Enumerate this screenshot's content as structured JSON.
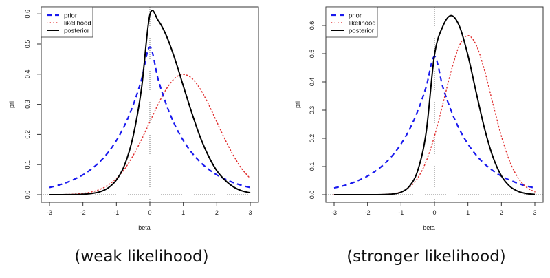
{
  "chart_data": [
    {
      "type": "line",
      "caption": "(weak likelihood)",
      "xlabel": "beta",
      "ylabel": "pri",
      "xlim": [
        -3,
        3
      ],
      "ylim": [
        0,
        0.6
      ],
      "xticks": [
        "-3",
        "-2",
        "-1",
        "0",
        "1",
        "2",
        "3"
      ],
      "yticks": [
        "0.0",
        "0.1",
        "0.2",
        "0.3",
        "0.4",
        "0.5",
        "0.6"
      ],
      "legend": {
        "position": "top-left",
        "entries": [
          "prior",
          "likelihood",
          "posterior"
        ]
      },
      "reference_lines": {
        "x": 0,
        "y": 0
      },
      "x": [
        -3,
        -2.75,
        -2.5,
        -2.25,
        -2,
        -1.75,
        -1.5,
        -1.25,
        -1,
        -0.75,
        -0.5,
        -0.25,
        0,
        0.25,
        0.5,
        0.75,
        1,
        1.25,
        1.5,
        1.75,
        2,
        2.25,
        2.5,
        2.75,
        3
      ],
      "series": [
        {
          "name": "prior",
          "color": "#1a1aee",
          "style": "dashed",
          "values": [
            0.024,
            0.031,
            0.04,
            0.052,
            0.066,
            0.085,
            0.109,
            0.14,
            0.18,
            0.231,
            0.297,
            0.382,
            0.49,
            0.382,
            0.297,
            0.231,
            0.18,
            0.14,
            0.109,
            0.085,
            0.066,
            0.052,
            0.04,
            0.031,
            0.024
          ]
        },
        {
          "name": "likelihood",
          "color": "#e03030",
          "style": "dotted",
          "values": [
            0.0001,
            0.0004,
            0.0009,
            0.002,
            0.0044,
            0.0091,
            0.0175,
            0.032,
            0.054,
            0.086,
            0.13,
            0.183,
            0.242,
            0.301,
            0.352,
            0.387,
            0.399,
            0.387,
            0.352,
            0.301,
            0.242,
            0.183,
            0.13,
            0.086,
            0.054
          ]
        },
        {
          "name": "posterior",
          "color": "#000000",
          "style": "solid",
          "values": [
            0.0,
            0.0,
            0.0002,
            0.0005,
            0.0015,
            0.0039,
            0.0096,
            0.0225,
            0.049,
            0.1,
            0.194,
            0.352,
            0.597,
            0.578,
            0.526,
            0.45,
            0.361,
            0.273,
            0.193,
            0.129,
            0.08,
            0.048,
            0.026,
            0.013,
            0.0065
          ]
        }
      ]
    },
    {
      "type": "line",
      "caption": "(stronger likelihood)",
      "xlabel": "beta",
      "ylabel": "pri",
      "xlim": [
        -3,
        3
      ],
      "ylim": [
        0,
        0.65
      ],
      "xticks": [
        "-3",
        "-2",
        "-1",
        "0",
        "1",
        "2",
        "3"
      ],
      "yticks": [
        "0.0",
        "0.1",
        "0.2",
        "0.3",
        "0.4",
        "0.5",
        "0.6"
      ],
      "legend": {
        "position": "top-left",
        "entries": [
          "prior",
          "likelihood",
          "posterior"
        ]
      },
      "reference_lines": {
        "x": 0,
        "y": 0
      },
      "x": [
        -3,
        -2.75,
        -2.5,
        -2.25,
        -2,
        -1.75,
        -1.5,
        -1.25,
        -1,
        -0.75,
        -0.5,
        -0.25,
        0,
        0.25,
        0.5,
        0.75,
        1,
        1.25,
        1.5,
        1.75,
        2,
        2.25,
        2.5,
        2.75,
        3
      ],
      "series": [
        {
          "name": "prior",
          "color": "#1a1aee",
          "style": "dashed",
          "values": [
            0.024,
            0.031,
            0.04,
            0.052,
            0.066,
            0.085,
            0.109,
            0.14,
            0.18,
            0.231,
            0.297,
            0.382,
            0.49,
            0.382,
            0.297,
            0.231,
            0.18,
            0.14,
            0.109,
            0.085,
            0.066,
            0.052,
            0.04,
            0.031,
            0.024
          ]
        },
        {
          "name": "likelihood",
          "color": "#e03030",
          "style": "dotted",
          "values": [
            0,
            0,
            0,
            0,
            0.0001,
            0.0003,
            0.0011,
            0.0036,
            0.0103,
            0.0264,
            0.0594,
            0.118,
            0.2075,
            0.321,
            0.439,
            0.53,
            0.564,
            0.53,
            0.439,
            0.321,
            0.2075,
            0.118,
            0.0594,
            0.0264,
            0.0103
          ]
        },
        {
          "name": "posterior",
          "color": "#000000",
          "style": "solid",
          "values": [
            0,
            0,
            0,
            0,
            0,
            0.0001,
            0.0006,
            0.0024,
            0.009,
            0.03,
            0.086,
            0.22,
            0.495,
            0.597,
            0.635,
            0.596,
            0.494,
            0.361,
            0.233,
            0.133,
            0.067,
            0.03,
            0.012,
            0.004,
            0.001
          ]
        }
      ]
    }
  ]
}
